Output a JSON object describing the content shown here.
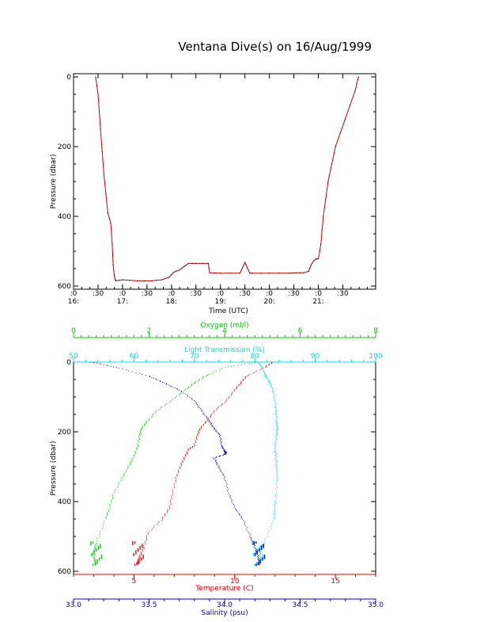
{
  "title": "Ventana Dive(s) on 16/Aug/1999",
  "colors": {
    "time_series": "#cc0000",
    "time_series_markers": "#000000",
    "oxygen": "#00cc00",
    "light": "#00e0e0",
    "temperature": "#dd0000",
    "salinity": "#0000cc",
    "axis": "#000000"
  },
  "chart_data": [
    {
      "type": "line",
      "title": "Ventana Dive(s) on 16/Aug/1999",
      "xlabel": "Time (UTC)",
      "ylabel": "Pressure (dbar)",
      "x_unit": "hours UTC",
      "xlim": [
        16.0,
        22.17
      ],
      "ylim": [
        600,
        0
      ],
      "y_ticks": [
        "0",
        "200",
        "400",
        "600"
      ],
      "x_ticks_top": [
        ":0",
        ":30",
        ":0",
        ":30",
        ":0",
        ":30",
        ":0",
        ":30",
        ":0",
        ":30",
        ":0",
        ":30"
      ],
      "x_ticks_bottom": [
        "16:",
        "17:",
        "18:",
        "19:",
        "20:",
        "21:"
      ],
      "series": [
        {
          "x": [
            16.45,
            16.5,
            16.55,
            16.62,
            16.7,
            16.76,
            16.79,
            16.81,
            16.83,
            16.85,
            16.86,
            17.0,
            17.3,
            17.6,
            17.8,
            17.95,
            18.05,
            18.15,
            18.25,
            18.3,
            18.35,
            18.5,
            18.75,
            18.78,
            19.0,
            19.4,
            19.45,
            19.5,
            19.55,
            19.6,
            19.65,
            20.0,
            20.4,
            20.55,
            20.7,
            20.8,
            20.85,
            20.9,
            20.96,
            21.0,
            21.05,
            21.1,
            21.2,
            21.35,
            21.55,
            21.75,
            21.82
          ],
          "y": [
            0,
            50,
            150,
            280,
            390,
            420,
            480,
            540,
            570,
            580,
            585,
            582,
            585,
            585,
            582,
            575,
            560,
            555,
            545,
            540,
            535,
            535,
            535,
            562,
            563,
            563,
            548,
            532,
            548,
            563,
            563,
            563,
            563,
            562,
            562,
            558,
            540,
            528,
            522,
            522,
            480,
            400,
            300,
            200,
            120,
            40,
            0
          ]
        }
      ]
    },
    {
      "type": "scatter",
      "ylabel": "Pressure (dbar)",
      "ylim": [
        600,
        0
      ],
      "y_ticks": [
        "0",
        "200",
        "400",
        "600"
      ],
      "axes": {
        "oxygen": {
          "label": "Oxygen (ml/l)",
          "range": [
            0,
            8
          ],
          "ticks": [
            "0",
            "2",
            "4",
            "6",
            "8"
          ],
          "position": "top"
        },
        "light": {
          "label": "Light Transmission (%)",
          "range": [
            50,
            100
          ],
          "ticks": [
            "50",
            "60",
            "70",
            "80",
            "90",
            "100"
          ],
          "position": "top"
        },
        "temperature": {
          "label": "Temperature (C)",
          "range": [
            2,
            17
          ],
          "ticks": [
            "5",
            "10",
            "15"
          ],
          "position": "bottom"
        },
        "salinity": {
          "label": "Salinity (psu)",
          "range": [
            33.0,
            35.0
          ],
          "ticks": [
            "33.0",
            "33.5",
            "34.0",
            "34.5",
            "35.0"
          ],
          "position": "bottom"
        }
      },
      "series": [
        {
          "name": "Oxygen (ml/l)",
          "axis": "oxygen",
          "x": [
            4.9,
            4.0,
            3.5,
            3.2,
            2.95,
            2.6,
            2.2,
            1.95,
            1.8,
            1.75,
            1.7,
            1.6,
            1.45,
            1.3,
            1.05,
            0.95,
            0.85,
            0.6,
            0.55,
            0.55,
            0.6
          ],
          "y": [
            0,
            15,
            40,
            60,
            80,
            110,
            140,
            170,
            190,
            210,
            240,
            270,
            300,
            330,
            380,
            420,
            450,
            520,
            540,
            565,
            580
          ]
        },
        {
          "name": "Light Transmission (%)",
          "axis": "light",
          "x": [
            80.5,
            81.3,
            81.8,
            82.5,
            83.0,
            83.3,
            83.5,
            83.6,
            83.7,
            83.6,
            83.3,
            83.5,
            83.6,
            83.7,
            83.5,
            83.3,
            83.2,
            81.5,
            81.0,
            80.8,
            80.5
          ],
          "y": [
            0,
            15,
            40,
            60,
            80,
            110,
            140,
            170,
            190,
            210,
            240,
            270,
            300,
            330,
            380,
            420,
            450,
            520,
            540,
            565,
            580
          ]
        },
        {
          "name": "Temperature (C)",
          "axis": "temperature",
          "x": [
            11.9,
            11.5,
            10.6,
            10.3,
            10.0,
            9.6,
            9.0,
            8.6,
            8.3,
            8.15,
            8.0,
            7.7,
            7.5,
            7.3,
            7.1,
            6.9,
            6.75,
            6.4,
            5.7,
            5.5,
            5.3,
            5.2,
            5.2
          ],
          "y": [
            0,
            15,
            40,
            60,
            80,
            110,
            140,
            170,
            190,
            210,
            240,
            250,
            275,
            300,
            330,
            380,
            420,
            450,
            490,
            530,
            555,
            570,
            580
          ]
        },
        {
          "name": "Salinity (psu)",
          "axis": "salinity",
          "x": [
            33.12,
            33.28,
            33.5,
            33.6,
            33.7,
            33.8,
            33.85,
            33.9,
            33.93,
            33.97,
            33.98,
            34.0,
            34.01,
            34.0,
            33.93,
            33.96,
            34.0,
            34.03,
            34.07,
            34.12,
            34.17,
            34.2,
            34.22,
            34.23
          ],
          "y": [
            0,
            15,
            40,
            60,
            80,
            110,
            140,
            170,
            190,
            210,
            240,
            255,
            260,
            265,
            275,
            300,
            330,
            380,
            420,
            450,
            500,
            530,
            555,
            580
          ]
        }
      ]
    }
  ]
}
